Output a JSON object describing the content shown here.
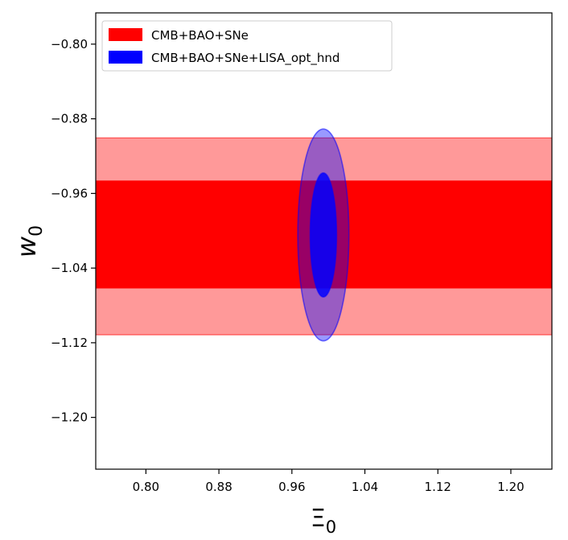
{
  "chart_data": {
    "type": "contour",
    "xlabel": "Ξ",
    "xlabel_sub": "0",
    "ylabel": "w",
    "ylabel_sub": "0",
    "xlim": [
      0.745,
      1.245
    ],
    "ylim": [
      -1.2555,
      -0.7665
    ],
    "x_ticks": [
      0.8,
      0.88,
      0.96,
      1.04,
      1.12,
      1.2
    ],
    "x_tick_labels": [
      "0.80",
      "0.88",
      "0.96",
      "1.04",
      "1.12",
      "1.20"
    ],
    "y_ticks": [
      -0.8,
      -0.88,
      -0.96,
      -1.04,
      -1.12,
      -1.2
    ],
    "y_tick_labels": [
      "−0.80",
      "−0.88",
      "−0.96",
      "−1.04",
      "−1.12",
      "−1.20"
    ],
    "legend_position": "top-left",
    "series": [
      {
        "name": "CMB+BAO+SNe",
        "color": "#ff0000",
        "shape": "band",
        "sigma1": [
          -1.0615,
          -0.9465
        ],
        "sigma2": [
          -1.1115,
          -0.9005
        ]
      },
      {
        "name": "CMB+BAO+SNe+LISA_opt_hnd",
        "color": "#0000ff",
        "shape": "ellipse",
        "center": [
          0.9945,
          -1.0045
        ],
        "sigma1": {
          "rx": 0.0145,
          "ry": 0.0665
        },
        "sigma2": {
          "rx": 0.028,
          "ry": 0.1135
        }
      }
    ]
  }
}
